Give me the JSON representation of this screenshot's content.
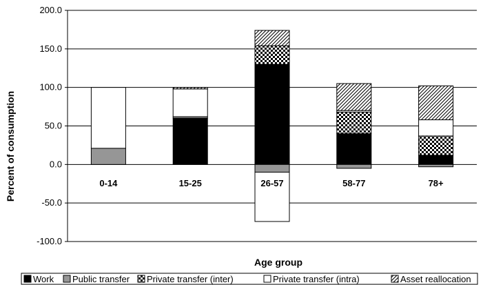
{
  "chart_data": {
    "type": "bar",
    "stacked": true,
    "categories": [
      "0-14",
      "15-25",
      "26-57",
      "58-77",
      "78+"
    ],
    "xlabel": "Age group",
    "ylabel": "Percent of consumption",
    "ylim": [
      -100,
      200
    ],
    "yticks": [
      "-100.0",
      "-50.0",
      "0.0",
      "50.0",
      "100.0",
      "150.0",
      "200.0"
    ],
    "grid": true,
    "legend_position": "bottom",
    "series": [
      {
        "name": "Work",
        "values": [
          0,
          60,
          130,
          40,
          12
        ],
        "color": "#000000",
        "pattern": "solid"
      },
      {
        "name": "Public transfer",
        "values": [
          21,
          2,
          -10,
          -5,
          -3
        ],
        "color": "#969696",
        "pattern": "solid"
      },
      {
        "name": "Private transfer (inter)",
        "values": [
          0,
          0,
          24,
          28,
          25
        ],
        "color": "#000000",
        "pattern": "checker"
      },
      {
        "name": "Private transfer (intra)",
        "values": [
          79,
          36,
          -64,
          2,
          21
        ],
        "color": "#ffffff",
        "pattern": "solid"
      },
      {
        "name": "Asset reallocation",
        "values": [
          0,
          2,
          20,
          35,
          44
        ],
        "color": "#ffffff",
        "pattern": "hatch"
      }
    ]
  }
}
